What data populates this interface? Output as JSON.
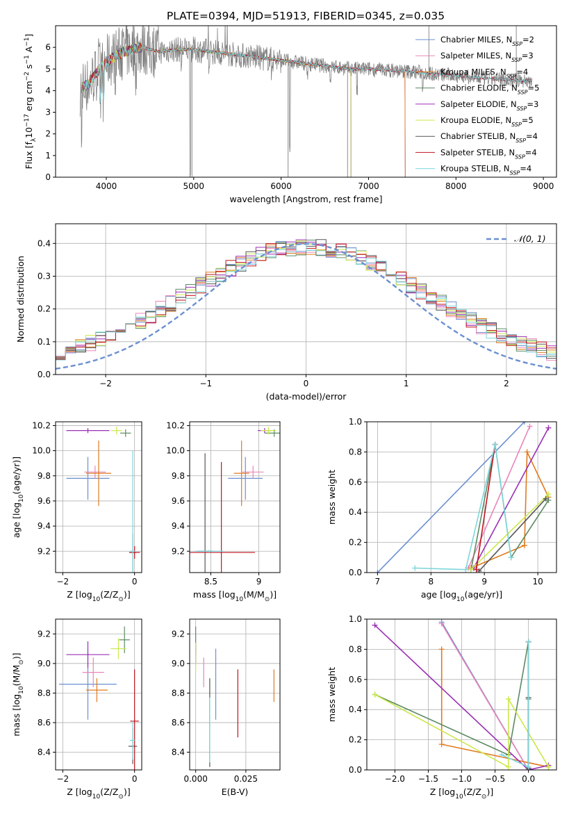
{
  "figure": {
    "title": "PLATE=0394, MJD=51913, FIBERID=0345, z=0.035"
  },
  "colors": {
    "Chabrier MILES": "#6a8fd0",
    "Salpeter MILES": "#e985b8",
    "Kroupa MILES": "#e07a1f",
    "Chabrier ELODIE": "#5b8a62",
    "Salpeter ELODIE": "#9b2fb5",
    "Kroupa ELODIE": "#cbe84a",
    "Chabrier STELIB": "#555555",
    "Salpeter STELIB": "#c0151f",
    "Kroupa STELIB": "#7dd6dc"
  },
  "chart_data": [
    {
      "id": "spectrum",
      "type": "line",
      "title": "PLATE=0394, MJD=51913, FIBERID=0345, z=0.035",
      "xlabel": "wavelength [Angstrom, rest frame]",
      "ylabel_parts": [
        "Flux [f",
        "λ",
        "10",
        "−17",
        " erg cm",
        "−2",
        " s",
        "−1",
        " A",
        "−1",
        "]"
      ],
      "xlim": [
        3420,
        9150
      ],
      "ylim": [
        0,
        7
      ],
      "xticks": [
        4000,
        5000,
        6000,
        7000,
        8000,
        9000
      ],
      "yticks": [
        0,
        1,
        2,
        3,
        4,
        5,
        6
      ],
      "grid": false,
      "legend_position": "upper-right",
      "legend": [
        {
          "name": "Chabrier MILES",
          "nssp": "2"
        },
        {
          "name": "Salpeter MILES",
          "nssp": "3"
        },
        {
          "name": "Kroupa MILES",
          "nssp": "4"
        },
        {
          "name": "Chabrier ELODIE",
          "nssp": "5"
        },
        {
          "name": "Salpeter ELODIE",
          "nssp": "3"
        },
        {
          "name": "Kroupa ELODIE",
          "nssp": "5"
        },
        {
          "name": "Chabrier STELIB",
          "nssp": "4"
        },
        {
          "name": "Salpeter STELIB",
          "nssp": "4"
        },
        {
          "name": "Kroupa STELIB",
          "nssp": "4"
        }
      ],
      "data_color": "#808080",
      "data_continuum": {
        "x": [
          3700,
          3800,
          3900,
          4000,
          4100,
          4200,
          4400,
          4600,
          4800,
          5000,
          5200,
          5400,
          5600,
          5800,
          6000,
          6200,
          6400,
          6600,
          6800,
          7000,
          7200,
          7400,
          7600,
          7800,
          8000,
          8200,
          8400,
          8600,
          8800,
          9000
        ],
        "y": [
          4.1,
          4.3,
          4.9,
          5.3,
          5.6,
          5.8,
          6.0,
          5.8,
          5.9,
          5.9,
          5.8,
          5.7,
          5.6,
          5.5,
          5.4,
          5.3,
          5.2,
          5.1,
          5.0,
          5.0,
          4.95,
          4.9,
          4.85,
          4.75,
          4.7,
          4.6,
          4.55,
          4.5,
          4.45,
          4.5
        ]
      },
      "model_end_wavelength": {
        "MILES": 7420,
        "ELODIE": 6800,
        "STELIB": 8870
      }
    },
    {
      "id": "residuals",
      "type": "histogram",
      "xlabel": "(data-model)/error",
      "ylabel": "Normed distribution",
      "xlim": [
        -2.5,
        2.5
      ],
      "ylim": [
        0,
        0.46
      ],
      "xticks": [
        -2,
        -1,
        0,
        1,
        2
      ],
      "yticks": [
        0,
        0.1,
        0.2,
        0.3,
        0.4
      ],
      "grid": true,
      "legend_position": "upper-right",
      "legend": [
        {
          "name": "𝒩(0, 1)",
          "style": "dashed",
          "color": "#6a8fd0"
        }
      ],
      "bin_width": 0.1
    },
    {
      "id": "age-vs-Z",
      "type": "errorbar",
      "xlabel_parts": [
        "Z [log",
        "10",
        "(Z/Z",
        "⊙",
        ")]"
      ],
      "ylabel_parts": [
        "age  [log",
        "10",
        "(age/yr)]"
      ],
      "xlim": [
        -2.2,
        0.2
      ],
      "ylim": [
        9.03,
        10.23
      ],
      "xticks": [
        -2,
        0
      ],
      "yticks": [
        9.2,
        9.4,
        9.6,
        9.8,
        10.0,
        10.2
      ],
      "grid": true,
      "points": [
        {
          "model": "Chabrier MILES",
          "x": -1.3,
          "y": 9.78,
          "xerr": 0.6,
          "yerr": 0.17
        },
        {
          "model": "Salpeter MILES",
          "x": -1.1,
          "y": 9.83,
          "xerr": 0.3,
          "yerr": 0.05
        },
        {
          "model": "Kroupa MILES",
          "x": -1.0,
          "y": 9.82,
          "xerr": 0.35,
          "yerr": 0.26
        },
        {
          "model": "Chabrier ELODIE",
          "x": -0.25,
          "y": 10.14,
          "xerr": 0.15,
          "yerr": 0.03
        },
        {
          "model": "Salpeter ELODIE",
          "x": -1.3,
          "y": 10.16,
          "xerr": 0.6,
          "yerr": 0.02
        },
        {
          "model": "Kroupa ELODIE",
          "x": -0.5,
          "y": 10.16,
          "xerr": 0.15,
          "yerr": 0.03
        },
        {
          "model": "Chabrier STELIB",
          "x": -0.05,
          "y": 9.19,
          "xerr": 0.1,
          "yerr": 0.15
        },
        {
          "model": "Salpeter STELIB",
          "x": 0.0,
          "y": 9.19,
          "xerr": 0.15,
          "yerr": 0.05
        },
        {
          "model": "Kroupa STELIB",
          "x": -0.05,
          "y": 9.2,
          "xerr": 0.08,
          "yerr": 0.8
        }
      ]
    },
    {
      "id": "age-vs-mass",
      "type": "errorbar",
      "xlabel_parts": [
        "mass [log",
        "10",
        "(M/M",
        "⊙",
        ")]"
      ],
      "ylabel_parts": [],
      "xlim": [
        8.28,
        9.22
      ],
      "ylim": [
        9.03,
        10.23
      ],
      "xticks": [
        8.5,
        9.0
      ],
      "yticks": [
        9.2,
        9.4,
        9.6,
        9.8,
        10.0,
        10.2
      ],
      "grid": true,
      "points": [
        {
          "model": "Chabrier MILES",
          "x": 8.86,
          "y": 9.78,
          "xerr": 0.18,
          "yerr": 0.17
        },
        {
          "model": "Salpeter MILES",
          "x": 8.94,
          "y": 9.83,
          "xerr": 0.11,
          "yerr": 0.05
        },
        {
          "model": "Kroupa MILES",
          "x": 8.82,
          "y": 9.82,
          "xerr": 0.08,
          "yerr": 0.26
        },
        {
          "model": "Chabrier ELODIE",
          "x": 9.16,
          "y": 10.14,
          "xerr": 0.1,
          "yerr": 0.03
        },
        {
          "model": "Salpeter ELODIE",
          "x": 9.06,
          "y": 10.16,
          "xerr": 0.07,
          "yerr": 0.02
        },
        {
          "model": "Kroupa ELODIE",
          "x": 9.1,
          "y": 10.16,
          "xerr": 0.08,
          "yerr": 0.03
        },
        {
          "model": "Chabrier STELIB",
          "x": 8.44,
          "y": 9.2,
          "xerr": 0.08,
          "yerr": 0.78
        },
        {
          "model": "Salpeter STELIB",
          "x": 8.61,
          "y": 9.19,
          "xerr": 0.35,
          "yerr": 0.72
        },
        {
          "model": "Kroupa STELIB",
          "x": 8.48,
          "y": 9.2,
          "xerr": 0.15,
          "yerr": 0.01
        }
      ]
    },
    {
      "id": "weight-vs-age",
      "type": "line",
      "xlabel_parts": [
        "age  [log",
        "10",
        "(age/yr)]"
      ],
      "ylabel": "mass weight",
      "xlim": [
        6.8,
        10.35
      ],
      "ylim": [
        0,
        1
      ],
      "xticks": [
        7,
        8,
        9,
        10
      ],
      "yticks": [
        0.0,
        0.2,
        0.4,
        0.6,
        0.8,
        1.0
      ],
      "grid": true,
      "series": [
        {
          "model": "Chabrier MILES",
          "x": [
            7.0,
            9.75
          ],
          "y": [
            0.0,
            1.0
          ]
        },
        {
          "model": "Salpeter MILES",
          "x": [
            8.7,
            9.85
          ],
          "y": [
            0.03,
            0.97
          ]
        },
        {
          "model": "Kroupa MILES",
          "x": [
            8.75,
            9.75,
            9.8,
            10.2
          ],
          "y": [
            0.03,
            0.18,
            0.8,
            0.5
          ]
        },
        {
          "model": "Chabrier ELODIE",
          "x": [
            8.75,
            9.2,
            9.5,
            10.2
          ],
          "y": [
            0.02,
            0.85,
            0.1,
            0.48
          ]
        },
        {
          "model": "Salpeter ELODIE",
          "x": [
            8.8,
            10.2
          ],
          "y": [
            0.03,
            0.96
          ]
        },
        {
          "model": "Kroupa ELODIE",
          "x": [
            8.75,
            10.2
          ],
          "y": [
            0.02,
            0.52
          ]
        },
        {
          "model": "Chabrier STELIB",
          "x": [
            8.9,
            10.15
          ],
          "y": [
            0.01,
            0.49
          ]
        },
        {
          "model": "Salpeter STELIB",
          "x": [
            8.85,
            9.2
          ],
          "y": [
            0.02,
            0.85
          ]
        },
        {
          "model": "Kroupa STELIB",
          "x": [
            7.7,
            8.65,
            9.2,
            9.5
          ],
          "y": [
            0.03,
            0.02,
            0.85,
            0.1
          ]
        }
      ]
    },
    {
      "id": "mass-vs-Z",
      "type": "errorbar",
      "xlabel_parts": [
        "Z [log",
        "10",
        "(Z/Z",
        "⊙",
        ")]"
      ],
      "ylabel_parts": [
        "mass [log",
        "10",
        "(M/M",
        "⊙",
        ")]"
      ],
      "xlim": [
        -2.2,
        0.2
      ],
      "ylim": [
        8.28,
        9.3
      ],
      "xticks": [
        -2,
        0
      ],
      "yticks": [
        8.4,
        8.6,
        8.8,
        9.0,
        9.2
      ],
      "grid": true,
      "points": [
        {
          "model": "Chabrier MILES",
          "x": -1.3,
          "y": 8.86,
          "xerr": 0.8,
          "yerr": 0.24
        },
        {
          "model": "Salpeter MILES",
          "x": -1.15,
          "y": 8.94,
          "xerr": 0.3,
          "yerr": 0.1
        },
        {
          "model": "Kroupa MILES",
          "x": -1.05,
          "y": 8.82,
          "xerr": 0.3,
          "yerr": 0.08
        },
        {
          "model": "Chabrier ELODIE",
          "x": -0.28,
          "y": 9.16,
          "xerr": 0.15,
          "yerr": 0.09
        },
        {
          "model": "Salpeter ELODIE",
          "x": -1.3,
          "y": 9.06,
          "xerr": 0.6,
          "yerr": 0.09
        },
        {
          "model": "Kroupa ELODIE",
          "x": -0.45,
          "y": 9.1,
          "xerr": 0.22,
          "yerr": 0.07
        },
        {
          "model": "Chabrier STELIB",
          "x": -0.05,
          "y": 8.44,
          "xerr": 0.12,
          "yerr": 0.12
        },
        {
          "model": "Salpeter STELIB",
          "x": 0.0,
          "y": 8.61,
          "xerr": 0.12,
          "yerr": 0.35
        },
        {
          "model": "Kroupa STELIB",
          "x": -0.05,
          "y": 8.48,
          "xerr": 0.08,
          "yerr": 0.13
        }
      ]
    },
    {
      "id": "mass-vs-ebv",
      "type": "errorbar",
      "xlabel": "E(B-V)",
      "xlim": [
        -0.003,
        0.042
      ],
      "ylim": [
        8.28,
        9.3
      ],
      "xticks": [
        0.0,
        0.025
      ],
      "xtick_labels": [
        "0.000",
        "0.025"
      ],
      "yticks": [
        8.4,
        8.6,
        8.8,
        9.0,
        9.2
      ],
      "grid": true,
      "points": [
        {
          "model": "Chabrier MILES",
          "x": 0.01,
          "y": 8.86,
          "xerr": 0,
          "yerr": 0.24
        },
        {
          "model": "Salpeter MILES",
          "x": 0.004,
          "y": 8.94,
          "xerr": 0,
          "yerr": 0.1
        },
        {
          "model": "Kroupa MILES",
          "x": 0.039,
          "y": 8.85,
          "xerr": 0,
          "yerr": 0.11
        },
        {
          "model": "Chabrier ELODIE",
          "x": 0.0,
          "y": 9.16,
          "xerr": 0,
          "yerr": 0.09
        },
        {
          "model": "Salpeter ELODIE",
          "x": 0.0,
          "y": 9.06,
          "xerr": 0,
          "yerr": 0.06
        },
        {
          "model": "Kroupa ELODIE",
          "x": 0.0,
          "y": 9.04,
          "xerr": 0,
          "yerr": 0.1
        },
        {
          "model": "Chabrier STELIB",
          "x": 0.007,
          "y": 8.6,
          "xerr": 0,
          "yerr": 0.3
        },
        {
          "model": "Salpeter STELIB",
          "x": 0.021,
          "y": 8.73,
          "xerr": 0,
          "yerr": 0.23
        },
        {
          "model": "Kroupa STELIB",
          "x": 0.007,
          "y": 8.55,
          "xerr": 0,
          "yerr": 0.22
        }
      ]
    },
    {
      "id": "weight-vs-Z",
      "type": "line",
      "xlabel_parts": [
        "Z [log",
        "10",
        "(Z/Z",
        "⊙",
        ")]"
      ],
      "ylabel": "mass weight",
      "xlim": [
        -2.42,
        0.42
      ],
      "ylim": [
        0,
        1
      ],
      "xticks": [
        -2.0,
        -1.5,
        -1.0,
        -0.5,
        0.0
      ],
      "xtick_labels": [
        "−2.0",
        "−1.5",
        "−1.0",
        "−0.5",
        "0.0"
      ],
      "yticks": [
        0.0,
        0.2,
        0.4,
        0.6,
        0.8,
        1.0
      ],
      "grid": true,
      "series": [
        {
          "model": "Chabrier MILES",
          "x": [
            -1.3,
            0.0
          ],
          "y": [
            0.98,
            0.0
          ]
        },
        {
          "model": "Salpeter MILES",
          "x": [
            -1.3,
            0.0
          ],
          "y": [
            0.97,
            0.0
          ]
        },
        {
          "model": "Kroupa MILES",
          "x": [
            -1.3,
            -1.3,
            0.3
          ],
          "y": [
            0.8,
            0.17,
            0.02
          ]
        },
        {
          "model": "Chabrier ELODIE",
          "x": [
            -2.3,
            -0.3,
            0.0,
            0.0
          ],
          "y": [
            0.5,
            0.1,
            0.85,
            0.47
          ]
        },
        {
          "model": "Salpeter ELODIE",
          "x": [
            -2.3,
            0.0,
            0.3
          ],
          "y": [
            0.96,
            0.0,
            0.03
          ]
        },
        {
          "model": "Kroupa ELODIE",
          "x": [
            -2.3,
            -0.3,
            -0.3,
            0.3
          ],
          "y": [
            0.5,
            0.02,
            0.47,
            0.02
          ]
        },
        {
          "model": "Chabrier STELIB",
          "x": [
            0.0,
            0.0
          ],
          "y": [
            0.01,
            0.48
          ]
        },
        {
          "model": "Salpeter STELIB",
          "x": [
            0.0,
            0.0
          ],
          "y": [
            0.02,
            0.85
          ]
        },
        {
          "model": "Kroupa STELIB",
          "x": [
            -0.4,
            0.0,
            0.0
          ],
          "y": [
            0.1,
            0.02,
            0.85
          ]
        }
      ]
    }
  ]
}
